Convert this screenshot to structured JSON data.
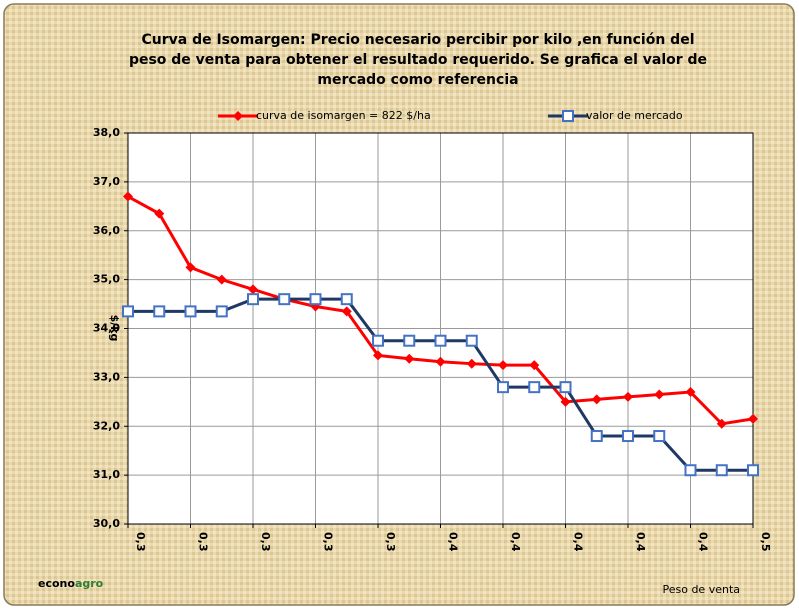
{
  "chart_data": {
    "type": "line",
    "title": [
      "Curva de Isomargen: Precio necesario percibir por kilo ,en función del",
      "peso de venta para obtener el resultado requerido. Se grafica el valor de",
      "mercado como referencia"
    ],
    "y_label": "$/kg",
    "x_label": "Peso de venta",
    "brand": [
      "econo",
      "agro"
    ],
    "categories": [
      "0,3",
      null,
      "0,3",
      null,
      "0,3",
      null,
      "0,3",
      null,
      "0,3",
      null,
      "0,4",
      null,
      "0,4",
      null,
      "0,4",
      null,
      "0,4",
      null,
      "0,4",
      null,
      "0,5"
    ],
    "series": [
      {
        "name": "curva de isomargen = 822 $/ha",
        "color": "#ff0000",
        "marker": "diamond",
        "values": [
          36.7,
          36.35,
          35.25,
          35.0,
          34.8,
          34.6,
          34.45,
          34.35,
          33.45,
          33.38,
          33.32,
          33.28,
          33.25,
          33.25,
          32.5,
          32.55,
          32.6,
          32.65,
          32.7,
          32.05,
          32.15
        ]
      },
      {
        "name": "valor de mercado",
        "color": "#1f3864",
        "marker_color": "#4472c4",
        "marker": "square",
        "values": [
          34.35,
          34.35,
          34.35,
          34.35,
          34.6,
          34.6,
          34.6,
          34.6,
          33.75,
          33.75,
          33.75,
          33.75,
          32.8,
          32.8,
          32.8,
          31.8,
          31.8,
          31.8,
          31.1,
          31.1,
          31.1
        ]
      }
    ],
    "ylim": [
      30,
      38
    ],
    "yticks": [
      {
        "value": 30,
        "label": "30,0"
      },
      {
        "value": 31,
        "label": "31,0"
      },
      {
        "value": 32,
        "label": "32,0"
      },
      {
        "value": 33,
        "label": "33,0"
      },
      {
        "value": 34,
        "label": "34,0"
      },
      {
        "value": 35,
        "label": "35,0"
      },
      {
        "value": 36,
        "label": "36,0"
      },
      {
        "value": 37,
        "label": "37,0"
      },
      {
        "value": 38,
        "label": "38,0"
      }
    ],
    "grid": true
  }
}
